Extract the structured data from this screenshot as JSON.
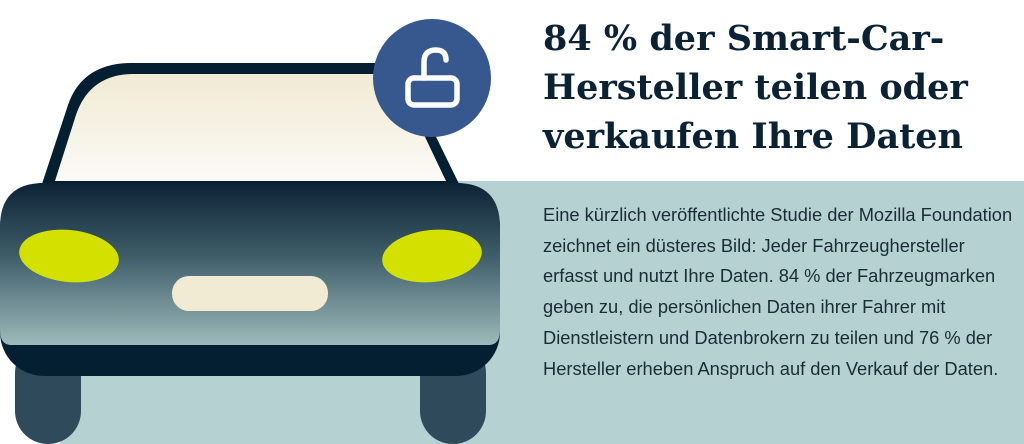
{
  "headline": "84 % der Smart-Car-Hersteller teilen oder verkaufen Ihre Daten",
  "body_text": "Eine kürzlich veröffentlichte Studie der Mozilla Foundation zeichnet ein düsteres Bild: Jeder Fahrzeughersteller erfasst und nutzt Ihre Daten. 84 % der Fahrzeugmarken geben zu, die persönlichen Daten ihrer Fahrer mit Dienstleistern und Datenbrokern zu teilen und 76 % der Hersteller erheben Anspruch auf den Verkauf der Daten.",
  "illustration": {
    "subject": "car-front",
    "badge_icon": "unlocked-padlock-icon",
    "colors": {
      "badge": "#37588f",
      "headlights": "#d4e100",
      "background_panel": "#b6d1d1",
      "car_outline": "#031f31"
    }
  }
}
